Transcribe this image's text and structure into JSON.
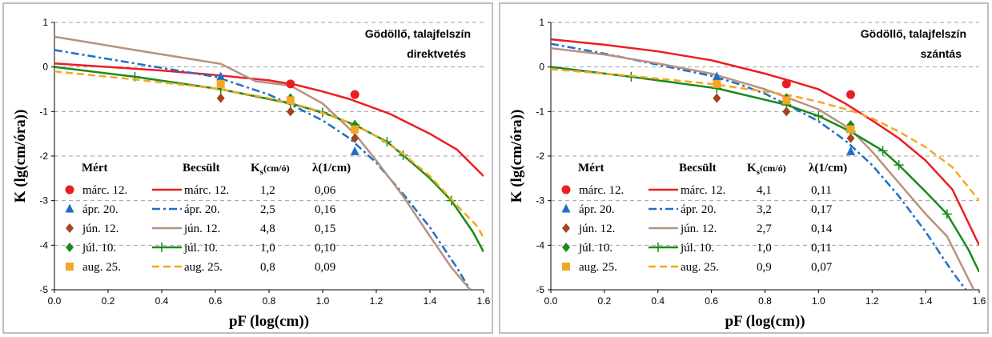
{
  "colors": {
    "march": "#ed1c24",
    "april": "#1f6fc5",
    "june": "#b8927f",
    "july": "#1a8a1a",
    "august": "#f5a623",
    "june_marker": "#a0461e",
    "grid": "#a0a0a0"
  },
  "chart_data": [
    {
      "type": "line",
      "title_line1": "Gödöllő, talajfelszín",
      "title_line2": "direktvetés",
      "xlabel": "pF (log(cm))",
      "ylabel": "K (lg(cm/óra))",
      "xlim": [
        0,
        1.6
      ],
      "ylim": [
        -5,
        1
      ],
      "x_ticks": [
        "0.0",
        "0.2",
        "0.4",
        "0.6",
        "0.8",
        "1.0",
        "1.2",
        "1.4",
        "1.6"
      ],
      "y_ticks": [
        "1",
        "0",
        "-1",
        "-2",
        "-3",
        "-4",
        "-5"
      ],
      "grid": "horizontal dashed",
      "legend": {
        "measured_header": "Mért",
        "estimated_header": "Becsült",
        "ks_header": "K",
        "ks_sub": "s",
        "ks_unit": "(cm/ó)",
        "lambda_header": "λ(1/cm)",
        "rows": [
          {
            "label": "márc. 12.",
            "ks": "1,2",
            "lambda": "0,06"
          },
          {
            "label": "ápr. 20.",
            "ks": "2,5",
            "lambda": "0,16"
          },
          {
            "label": "jún. 12.",
            "ks": "4,8",
            "lambda": "0,15"
          },
          {
            "label": "júl. 10.",
            "ks": "1,0",
            "lambda": "0,10"
          },
          {
            "label": "aug. 25.",
            "ks": "0,8",
            "lambda": "0,09"
          }
        ]
      },
      "series": [
        {
          "key": "march",
          "marker": "circle",
          "estimated_x": [
            0,
            0.2,
            0.4,
            0.6,
            0.8,
            0.9,
            1.0,
            1.1,
            1.25,
            1.4,
            1.5,
            1.6
          ],
          "estimated_y": [
            0.08,
            0.0,
            -0.08,
            -0.18,
            -0.3,
            -0.4,
            -0.55,
            -0.72,
            -1.05,
            -1.5,
            -1.85,
            -2.45
          ],
          "measured_x": [
            0.88,
            1.12
          ],
          "measured_y": [
            -0.38,
            -0.62
          ]
        },
        {
          "key": "april",
          "marker": "triangle",
          "estimated_x": [
            0,
            0.2,
            0.4,
            0.6,
            0.7,
            0.8,
            0.9,
            1.0,
            1.1,
            1.2,
            1.3,
            1.4,
            1.5,
            1.55
          ],
          "estimated_y": [
            0.38,
            0.18,
            -0.02,
            -0.22,
            -0.42,
            -0.62,
            -0.9,
            -1.2,
            -1.6,
            -2.15,
            -2.85,
            -3.6,
            -4.5,
            -5.0
          ],
          "measured_x": [
            0.62,
            0.88,
            1.12
          ],
          "measured_y": [
            -0.22,
            -0.7,
            -1.9
          ]
        },
        {
          "key": "june",
          "marker": "diamond",
          "estimated_x": [
            0,
            0.3,
            0.62,
            0.75,
            0.88,
            1.0,
            1.12,
            1.2,
            1.3,
            1.4,
            1.48,
            1.55
          ],
          "estimated_y": [
            0.68,
            0.38,
            0.07,
            -0.32,
            -0.42,
            -0.82,
            -1.5,
            -2.1,
            -2.9,
            -3.8,
            -4.5,
            -5.0
          ],
          "measured_x": [
            0.62,
            0.88,
            1.12
          ],
          "measured_y": [
            -0.7,
            -1.0,
            -1.6
          ]
        },
        {
          "key": "july",
          "marker": "diamond",
          "estimated_x": [
            0,
            0.3,
            0.62,
            0.8,
            0.88,
            1.0,
            1.12,
            1.24,
            1.3,
            1.4,
            1.48,
            1.56,
            1.6
          ],
          "estimated_y": [
            0.0,
            -0.22,
            -0.5,
            -0.72,
            -0.82,
            -1.02,
            -1.3,
            -1.68,
            -1.98,
            -2.5,
            -3.0,
            -3.7,
            -4.15
          ],
          "cross_x": [
            0.3,
            0.62,
            0.88,
            1.0,
            1.12,
            1.24,
            1.3,
            1.48
          ],
          "measured_x": [
            0.88,
            1.12
          ],
          "measured_y": [
            -0.7,
            -1.3
          ]
        },
        {
          "key": "august",
          "marker": "square",
          "estimated_x": [
            0,
            0.3,
            0.6,
            0.8,
            0.95,
            1.1,
            1.2,
            1.3,
            1.4,
            1.5,
            1.58,
            1.6
          ],
          "estimated_y": [
            -0.1,
            -0.28,
            -0.48,
            -0.7,
            -0.92,
            -1.25,
            -1.55,
            -1.95,
            -2.45,
            -3.1,
            -3.6,
            -3.85
          ],
          "measured_x": [
            0.62,
            0.88,
            1.12
          ],
          "measured_y": [
            -0.38,
            -0.75,
            -1.4
          ]
        }
      ]
    },
    {
      "type": "line",
      "title_line1": "Gödöllő, talajfelszín",
      "title_line2": "szántás",
      "xlabel": "pF (log(cm))",
      "ylabel": "K (lg(cm/óra))",
      "xlim": [
        0,
        1.6
      ],
      "ylim": [
        -5,
        1
      ],
      "x_ticks": [
        "0.0",
        "0.2",
        "0.4",
        "0.6",
        "0.8",
        "1.0",
        "1.2",
        "1.4",
        "1.6"
      ],
      "y_ticks": [
        "1",
        "0",
        "-1",
        "-2",
        "-3",
        "-4",
        "-5"
      ],
      "grid": "horizontal dashed",
      "legend": {
        "measured_header": "Mért",
        "estimated_header": "Becsült",
        "ks_header": "K",
        "ks_sub": "s",
        "ks_unit": "(cm/ó)",
        "lambda_header": "λ(1/cm)",
        "rows": [
          {
            "label": "márc. 12.",
            "ks": "4,1",
            "lambda": "0,11"
          },
          {
            "label": "ápr. 20.",
            "ks": "3,2",
            "lambda": "0,17"
          },
          {
            "label": "jún. 12.",
            "ks": "2,7",
            "lambda": "0,14"
          },
          {
            "label": "júl. 10.",
            "ks": "1,0",
            "lambda": "0,11"
          },
          {
            "label": "aug. 25.",
            "ks": "0,9",
            "lambda": "0,07"
          }
        ]
      },
      "series": [
        {
          "key": "march",
          "marker": "circle",
          "estimated_x": [
            0,
            0.2,
            0.4,
            0.6,
            0.8,
            0.9,
            1.0,
            1.1,
            1.2,
            1.3,
            1.4,
            1.5,
            1.6
          ],
          "estimated_y": [
            0.62,
            0.5,
            0.35,
            0.15,
            -0.15,
            -0.32,
            -0.5,
            -0.82,
            -1.2,
            -1.6,
            -2.1,
            -2.75,
            -4.0
          ],
          "measured_x": [
            0.88,
            1.12
          ],
          "measured_y": [
            -0.38,
            -0.62
          ]
        },
        {
          "key": "april",
          "marker": "triangle",
          "estimated_x": [
            0,
            0.2,
            0.4,
            0.6,
            0.7,
            0.8,
            0.9,
            1.0,
            1.1,
            1.2,
            1.3,
            1.4,
            1.5,
            1.55
          ],
          "estimated_y": [
            0.52,
            0.3,
            0.05,
            -0.2,
            -0.38,
            -0.6,
            -0.9,
            -1.22,
            -1.65,
            -2.2,
            -2.9,
            -3.7,
            -4.6,
            -5.0
          ],
          "measured_x": [
            0.62,
            0.88,
            1.12
          ],
          "measured_y": [
            -0.22,
            -0.7,
            -1.9
          ]
        },
        {
          "key": "june",
          "marker": "diamond",
          "estimated_x": [
            0,
            0.2,
            0.4,
            0.6,
            0.8,
            1.0,
            1.12,
            1.2,
            1.3,
            1.4,
            1.48,
            1.58
          ],
          "estimated_y": [
            0.42,
            0.28,
            0.08,
            -0.15,
            -0.5,
            -0.95,
            -1.4,
            -1.9,
            -2.6,
            -3.3,
            -3.8,
            -5.0
          ],
          "measured_x": [
            0.62,
            0.88,
            1.12
          ],
          "measured_y": [
            -0.7,
            -1.0,
            -1.6
          ]
        },
        {
          "key": "july",
          "marker": "diamond",
          "estimated_x": [
            0,
            0.3,
            0.62,
            0.88,
            1.0,
            1.12,
            1.24,
            1.3,
            1.4,
            1.48,
            1.56,
            1.6
          ],
          "estimated_y": [
            0.0,
            -0.22,
            -0.48,
            -0.85,
            -1.1,
            -1.45,
            -1.88,
            -2.2,
            -2.8,
            -3.3,
            -4.1,
            -4.6
          ],
          "cross_x": [
            0.3,
            0.62,
            0.88,
            1.0,
            1.12,
            1.24,
            1.3,
            1.48
          ],
          "measured_x": [
            0.88,
            1.12
          ],
          "measured_y": [
            -0.7,
            -1.3
          ]
        },
        {
          "key": "august",
          "marker": "square",
          "estimated_x": [
            0,
            0.3,
            0.6,
            0.88,
            1.0,
            1.12,
            1.2,
            1.3,
            1.4,
            1.5,
            1.6
          ],
          "estimated_y": [
            -0.05,
            -0.2,
            -0.38,
            -0.62,
            -0.78,
            -0.98,
            -1.15,
            -1.45,
            -1.8,
            -2.25,
            -3.0
          ],
          "measured_x": [
            0.62,
            0.88,
            1.12
          ],
          "measured_y": [
            -0.38,
            -0.75,
            -1.4
          ]
        }
      ]
    }
  ]
}
